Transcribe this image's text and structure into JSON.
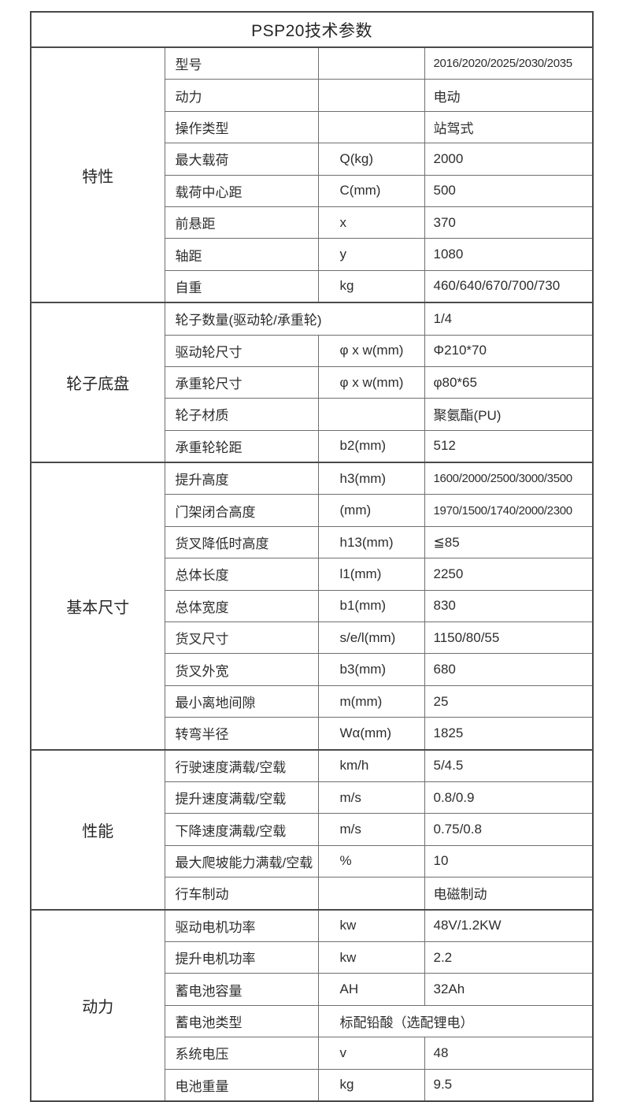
{
  "table": {
    "title": "PSP20技术参数",
    "colors": {
      "border_outer": "#474747",
      "border_inner": "#6f6f6f",
      "text": "#2d2d2d",
      "background": "#ffffff"
    },
    "sections": [
      {
        "category": "特性",
        "rows": [
          {
            "param": "型号",
            "unit": "",
            "value": "2016/2020/2025/2030/2035"
          },
          {
            "param": "动力",
            "unit": "",
            "value": "电动"
          },
          {
            "param": "操作类型",
            "unit": "",
            "value": "站驾式"
          },
          {
            "param": "最大载荷",
            "unit": "Q(kg)",
            "value": "2000"
          },
          {
            "param": "载荷中心距",
            "unit": "C(mm)",
            "value": "500"
          },
          {
            "param": "前悬距",
            "unit": "x",
            "value": "370"
          },
          {
            "param": "轴距",
            "unit": "y",
            "value": "1080"
          },
          {
            "param": "自重",
            "unit": "kg",
            "value": "460/640/670/700/730"
          }
        ]
      },
      {
        "category": "轮子底盘",
        "rows": [
          {
            "param": "轮子数量(驱动轮/承重轮)",
            "unit": null,
            "param_colspan": 2,
            "value": "1/4"
          },
          {
            "param": "驱动轮尺寸",
            "unit": "φ x w(mm)",
            "value": "Φ210*70"
          },
          {
            "param": "承重轮尺寸",
            "unit": "φ x w(mm)",
            "value": "φ80*65"
          },
          {
            "param": "轮子材质",
            "unit": "",
            "value": "聚氨酯(PU)"
          },
          {
            "param": "承重轮轮距",
            "unit": "b2(mm)",
            "value": "512"
          }
        ]
      },
      {
        "category": "基本尺寸",
        "rows": [
          {
            "param": "提升高度",
            "unit": "h3(mm)",
            "value": "1600/2000/2500/3000/3500"
          },
          {
            "param": "门架闭合高度",
            "unit": "(mm)",
            "value": "1970/1500/1740/2000/2300"
          },
          {
            "param": "货叉降低时高度",
            "unit": "h13(mm)",
            "value": "≦85"
          },
          {
            "param": "总体长度",
            "unit": "l1(mm)",
            "value": "2250"
          },
          {
            "param": "总体宽度",
            "unit": "b1(mm)",
            "value": "830"
          },
          {
            "param": "货叉尺寸",
            "unit": "s/e/l(mm)",
            "value": "1150/80/55"
          },
          {
            "param": "货叉外宽",
            "unit": "b3(mm)",
            "value": "680"
          },
          {
            "param": "最小离地间隙",
            "unit": "m(mm)",
            "value": "25"
          },
          {
            "param": "转弯半径",
            "unit": "Wα(mm)",
            "value": "1825"
          }
        ]
      },
      {
        "category": "性能",
        "rows": [
          {
            "param": "行驶速度满载/空载",
            "unit": "km/h",
            "value": "5/4.5"
          },
          {
            "param": "提升速度满载/空载",
            "unit": "m/s",
            "value": "0.8/0.9"
          },
          {
            "param": "下降速度满载/空载",
            "unit": "m/s",
            "value": "0.75/0.8"
          },
          {
            "param": "最大爬坡能力满载/空载",
            "unit": "%",
            "value": "10"
          },
          {
            "param": "行车制动",
            "unit": "",
            "value": "电磁制动"
          }
        ]
      },
      {
        "category": "动力",
        "rows": [
          {
            "param": "驱动电机功率",
            "unit": "kw",
            "value": "48V/1.2KW"
          },
          {
            "param": "提升电机功率",
            "unit": "kw",
            "value": "2.2"
          },
          {
            "param": "蓄电池容量",
            "unit": "AH",
            "value": "32Ah"
          },
          {
            "param": "蓄电池类型",
            "unit": "标配铅酸（选配锂电）",
            "unit_colspan": 2,
            "value": null
          },
          {
            "param": "系统电压",
            "unit": "v",
            "value": "48"
          },
          {
            "param": "电池重量",
            "unit": "kg",
            "value": "9.5"
          }
        ]
      }
    ]
  }
}
